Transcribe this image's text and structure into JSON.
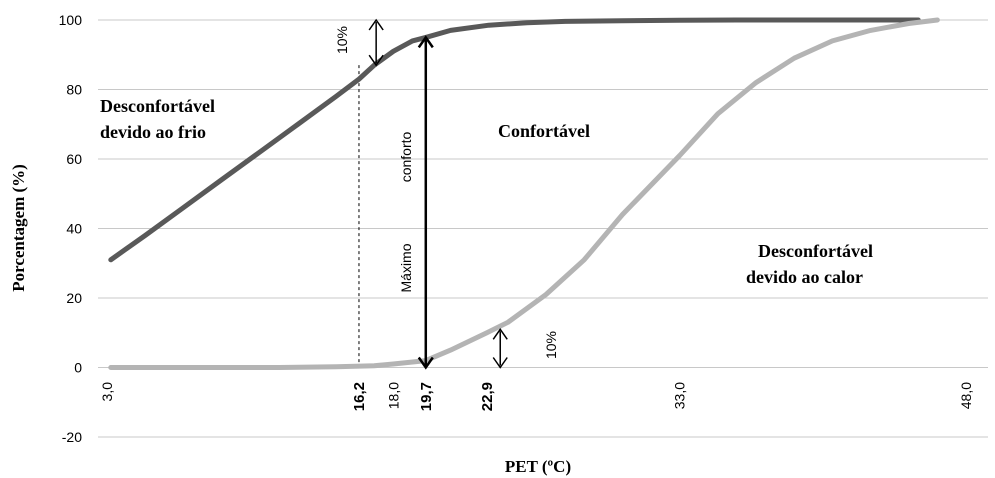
{
  "chart_data": {
    "type": "line",
    "xlabel": "PET (ºC)",
    "ylabel": "Porcentagem (%)",
    "xlim": [
      3.0,
      48.0
    ],
    "ylim": [
      -20,
      100
    ],
    "yticks": [
      "-20",
      "0",
      "20",
      "40",
      "60",
      "80",
      "100"
    ],
    "xticks": [
      {
        "value": 3.0,
        "label": "3,0",
        "bold": false
      },
      {
        "value": 16.2,
        "label": "16,2",
        "bold": true
      },
      {
        "value": 18.0,
        "label": "18,0",
        "bold": false
      },
      {
        "value": 19.7,
        "label": "19,7",
        "bold": true
      },
      {
        "value": 22.9,
        "label": "22,9",
        "bold": true
      },
      {
        "value": 33.0,
        "label": "33,0",
        "bold": false
      },
      {
        "value": 48.0,
        "label": "48,0",
        "bold": false
      }
    ],
    "grid": true,
    "series": [
      {
        "color": "#595959",
        "x": [
          3.2,
          5,
          7,
          9,
          11,
          13,
          15,
          16.2,
          17,
          18,
          19,
          19.7,
          21,
          23,
          25,
          27,
          30,
          33,
          36,
          40,
          44,
          45.5
        ],
        "y": [
          31,
          38,
          46,
          54,
          62,
          70,
          78,
          83,
          87,
          91,
          94,
          95,
          97,
          98.5,
          99.2,
          99.6,
          99.8,
          99.9,
          100,
          100,
          100,
          100
        ]
      },
      {
        "color": "#b4b4b4",
        "x": [
          3.2,
          8,
          12,
          15,
          17,
          18,
          19.7,
          21,
          22.9,
          24,
          26,
          28,
          30,
          33,
          35,
          37,
          39,
          41,
          43,
          45,
          46.5
        ],
        "y": [
          0,
          0,
          0,
          0.2,
          0.5,
          1,
          2,
          5,
          10,
          13,
          21,
          31,
          44,
          61,
          73,
          82,
          89,
          94,
          97,
          99,
          100
        ]
      }
    ],
    "annotations": {
      "cold_region": [
        "Desconfortável",
        "devido ao frio"
      ],
      "comfort_region": "Confortável",
      "heat_region": [
        "Desconfortável",
        "devido ao calor"
      ],
      "max_comfort_1": "Máximo",
      "max_comfort_2": "conforto",
      "ten_pct_top": "10%",
      "ten_pct_bottom": "10%"
    }
  }
}
